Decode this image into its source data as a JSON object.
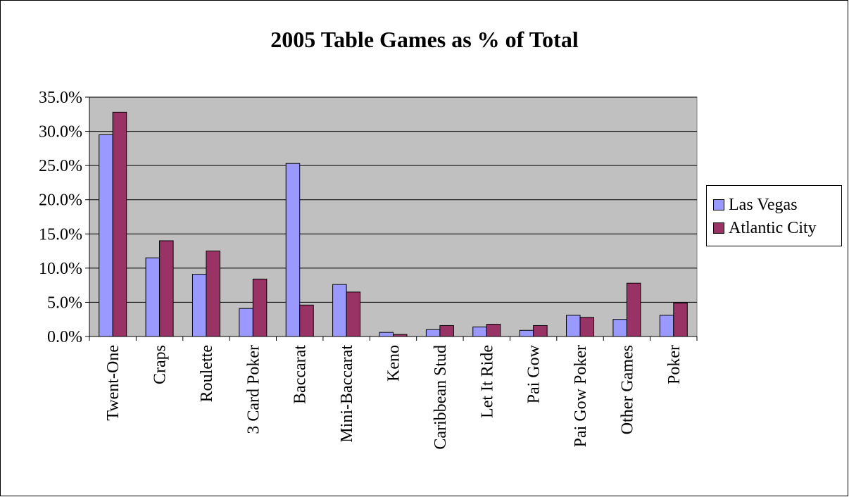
{
  "chart_data": {
    "type": "bar",
    "title": "2005 Table Games as % of Total",
    "categories": [
      "Twent-One",
      "Craps",
      "Roulette",
      "3 Card Poker",
      "Baccarat",
      "Mini-Baccarat",
      "Keno",
      "Caribbean Stud",
      "Let It Ride",
      "Pai Gow",
      "Pai Gow Poker",
      "Other Games",
      "Poker"
    ],
    "series": [
      {
        "name": "Las Vegas",
        "color": "#9999ff",
        "values": [
          29.5,
          11.5,
          9.1,
          4.1,
          25.3,
          7.6,
          0.6,
          1.0,
          1.4,
          0.9,
          3.1,
          2.5,
          3.1
        ]
      },
      {
        "name": "Atlantic City",
        "color": "#993366",
        "values": [
          32.8,
          14.0,
          12.5,
          8.4,
          4.6,
          6.5,
          0.3,
          1.6,
          1.8,
          1.6,
          2.8,
          7.8,
          4.9
        ]
      }
    ],
    "yticks": [
      "0.0%",
      "5.0%",
      "10.0%",
      "15.0%",
      "20.0%",
      "25.0%",
      "30.0%",
      "35.0%"
    ],
    "ylim": [
      0,
      35
    ],
    "grid": true,
    "plot_background": "#c0c0c0",
    "legend": "right"
  }
}
